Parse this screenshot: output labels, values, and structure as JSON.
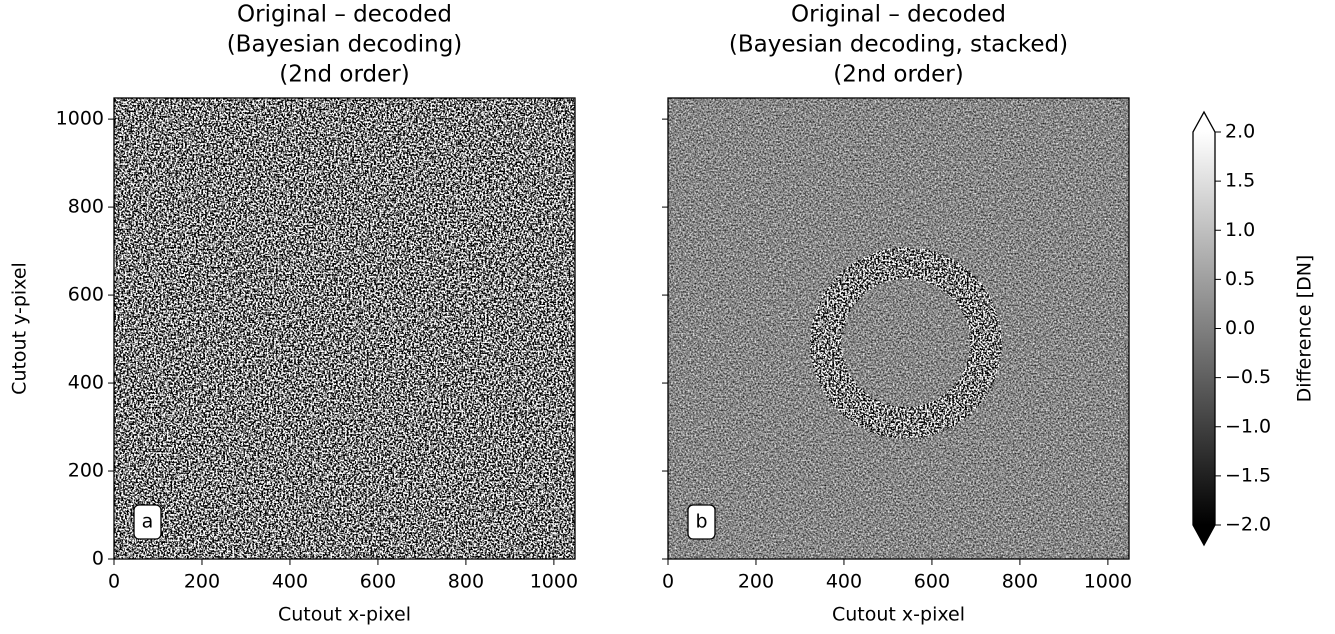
{
  "chart_data": [
    {
      "type": "image",
      "title": [
        "Original – decoded",
        "(Bayesian decoding)",
        "(2nd order)"
      ],
      "xlabel": "Cutout x-pixel",
      "ylabel": "Cutout y-pixel",
      "xlim": [
        0,
        1048
      ],
      "ylim": [
        0,
        1048
      ],
      "xticks": [
        0,
        200,
        400,
        600,
        800,
        1000
      ],
      "yticks": [
        0,
        200,
        400,
        600,
        800,
        1000
      ],
      "ytick_labels": true,
      "annotation": "a",
      "contrast": "high",
      "ring": false
    },
    {
      "type": "image",
      "title": [
        "Original – decoded",
        "(Bayesian decoding, stacked)",
        "(2nd order)"
      ],
      "xlabel": "Cutout x-pixel",
      "xlim": [
        0,
        1048
      ],
      "ylim": [
        0,
        1048
      ],
      "xticks": [
        0,
        200,
        400,
        600,
        800,
        1000
      ],
      "yticks": [
        0,
        200,
        400,
        600,
        800,
        1000
      ],
      "ytick_labels": false,
      "annotation": "b",
      "contrast": "low",
      "ring": true
    },
    {
      "type": "colorbar",
      "label": "Difference [DN]",
      "lim": [
        -2,
        2
      ],
      "extend": "both",
      "ticks": [
        {
          "value": 2,
          "label": "2.0"
        },
        {
          "value": 1.5,
          "label": "1.5"
        },
        {
          "value": 1,
          "label": "1.0"
        },
        {
          "value": 0.5,
          "label": "0.5"
        },
        {
          "value": 0,
          "label": "0.0"
        },
        {
          "value": -0.5,
          "label": "−0.5"
        },
        {
          "value": -1,
          "label": "−1.0"
        },
        {
          "value": -1.5,
          "label": "−1.5"
        },
        {
          "value": -2,
          "label": "−2.0"
        }
      ]
    }
  ]
}
